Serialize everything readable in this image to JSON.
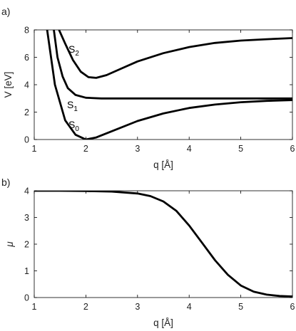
{
  "chart_data": [
    {
      "type": "line",
      "panel_label": "a)",
      "xlabel": "q [Å]",
      "ylabel": "V [eV]",
      "xlim": [
        1,
        6
      ],
      "ylim": [
        0,
        8
      ],
      "xticks": [
        1,
        2,
        3,
        4,
        5,
        6
      ],
      "yticks": [
        0,
        2,
        4,
        6,
        8
      ],
      "grid": false,
      "series": [
        {
          "name": "S0",
          "label_text": "S",
          "label_sub": "0",
          "x": [
            1.25,
            1.4,
            1.6,
            1.8,
            2.0,
            2.2,
            2.5,
            3.0,
            3.5,
            4.0,
            4.5,
            5.0,
            5.5,
            6.0
          ],
          "y": [
            8.0,
            4.0,
            1.4,
            0.35,
            0.0,
            0.15,
            0.6,
            1.35,
            1.9,
            2.3,
            2.55,
            2.72,
            2.82,
            2.88
          ]
        },
        {
          "name": "S1",
          "label_text": "S",
          "label_sub": "1",
          "x": [
            1.38,
            1.45,
            1.55,
            1.65,
            1.8,
            2.0,
            2.3,
            3.0,
            4.0,
            5.0,
            6.0
          ],
          "y": [
            8.0,
            6.0,
            4.6,
            3.75,
            3.25,
            3.05,
            3.0,
            3.0,
            3.0,
            3.0,
            3.0
          ]
        },
        {
          "name": "S2",
          "label_text": "S",
          "label_sub": "2",
          "x": [
            1.48,
            1.6,
            1.75,
            1.9,
            2.05,
            2.2,
            2.4,
            2.7,
            3.0,
            3.5,
            4.0,
            4.5,
            5.0,
            5.5,
            6.0
          ],
          "y": [
            8.0,
            7.0,
            5.8,
            4.95,
            4.55,
            4.5,
            4.7,
            5.2,
            5.7,
            6.3,
            6.75,
            7.05,
            7.22,
            7.32,
            7.4
          ]
        }
      ]
    },
    {
      "type": "line",
      "panel_label": "b)",
      "xlabel": "q [Å]",
      "ylabel": "μ",
      "xlim": [
        1,
        6
      ],
      "ylim": [
        0,
        4
      ],
      "xticks": [
        1,
        2,
        3,
        4,
        5,
        6
      ],
      "yticks": [
        0,
        1,
        2,
        3,
        4
      ],
      "grid": false,
      "series": [
        {
          "x": [
            1.0,
            1.5,
            2.0,
            2.5,
            3.0,
            3.25,
            3.5,
            3.75,
            4.0,
            4.25,
            4.5,
            4.75,
            5.0,
            5.25,
            5.5,
            5.75,
            6.0
          ],
          "y": [
            4.0,
            4.0,
            3.99,
            3.97,
            3.9,
            3.8,
            3.6,
            3.25,
            2.7,
            2.05,
            1.4,
            0.85,
            0.45,
            0.22,
            0.11,
            0.06,
            0.04
          ]
        }
      ]
    }
  ]
}
